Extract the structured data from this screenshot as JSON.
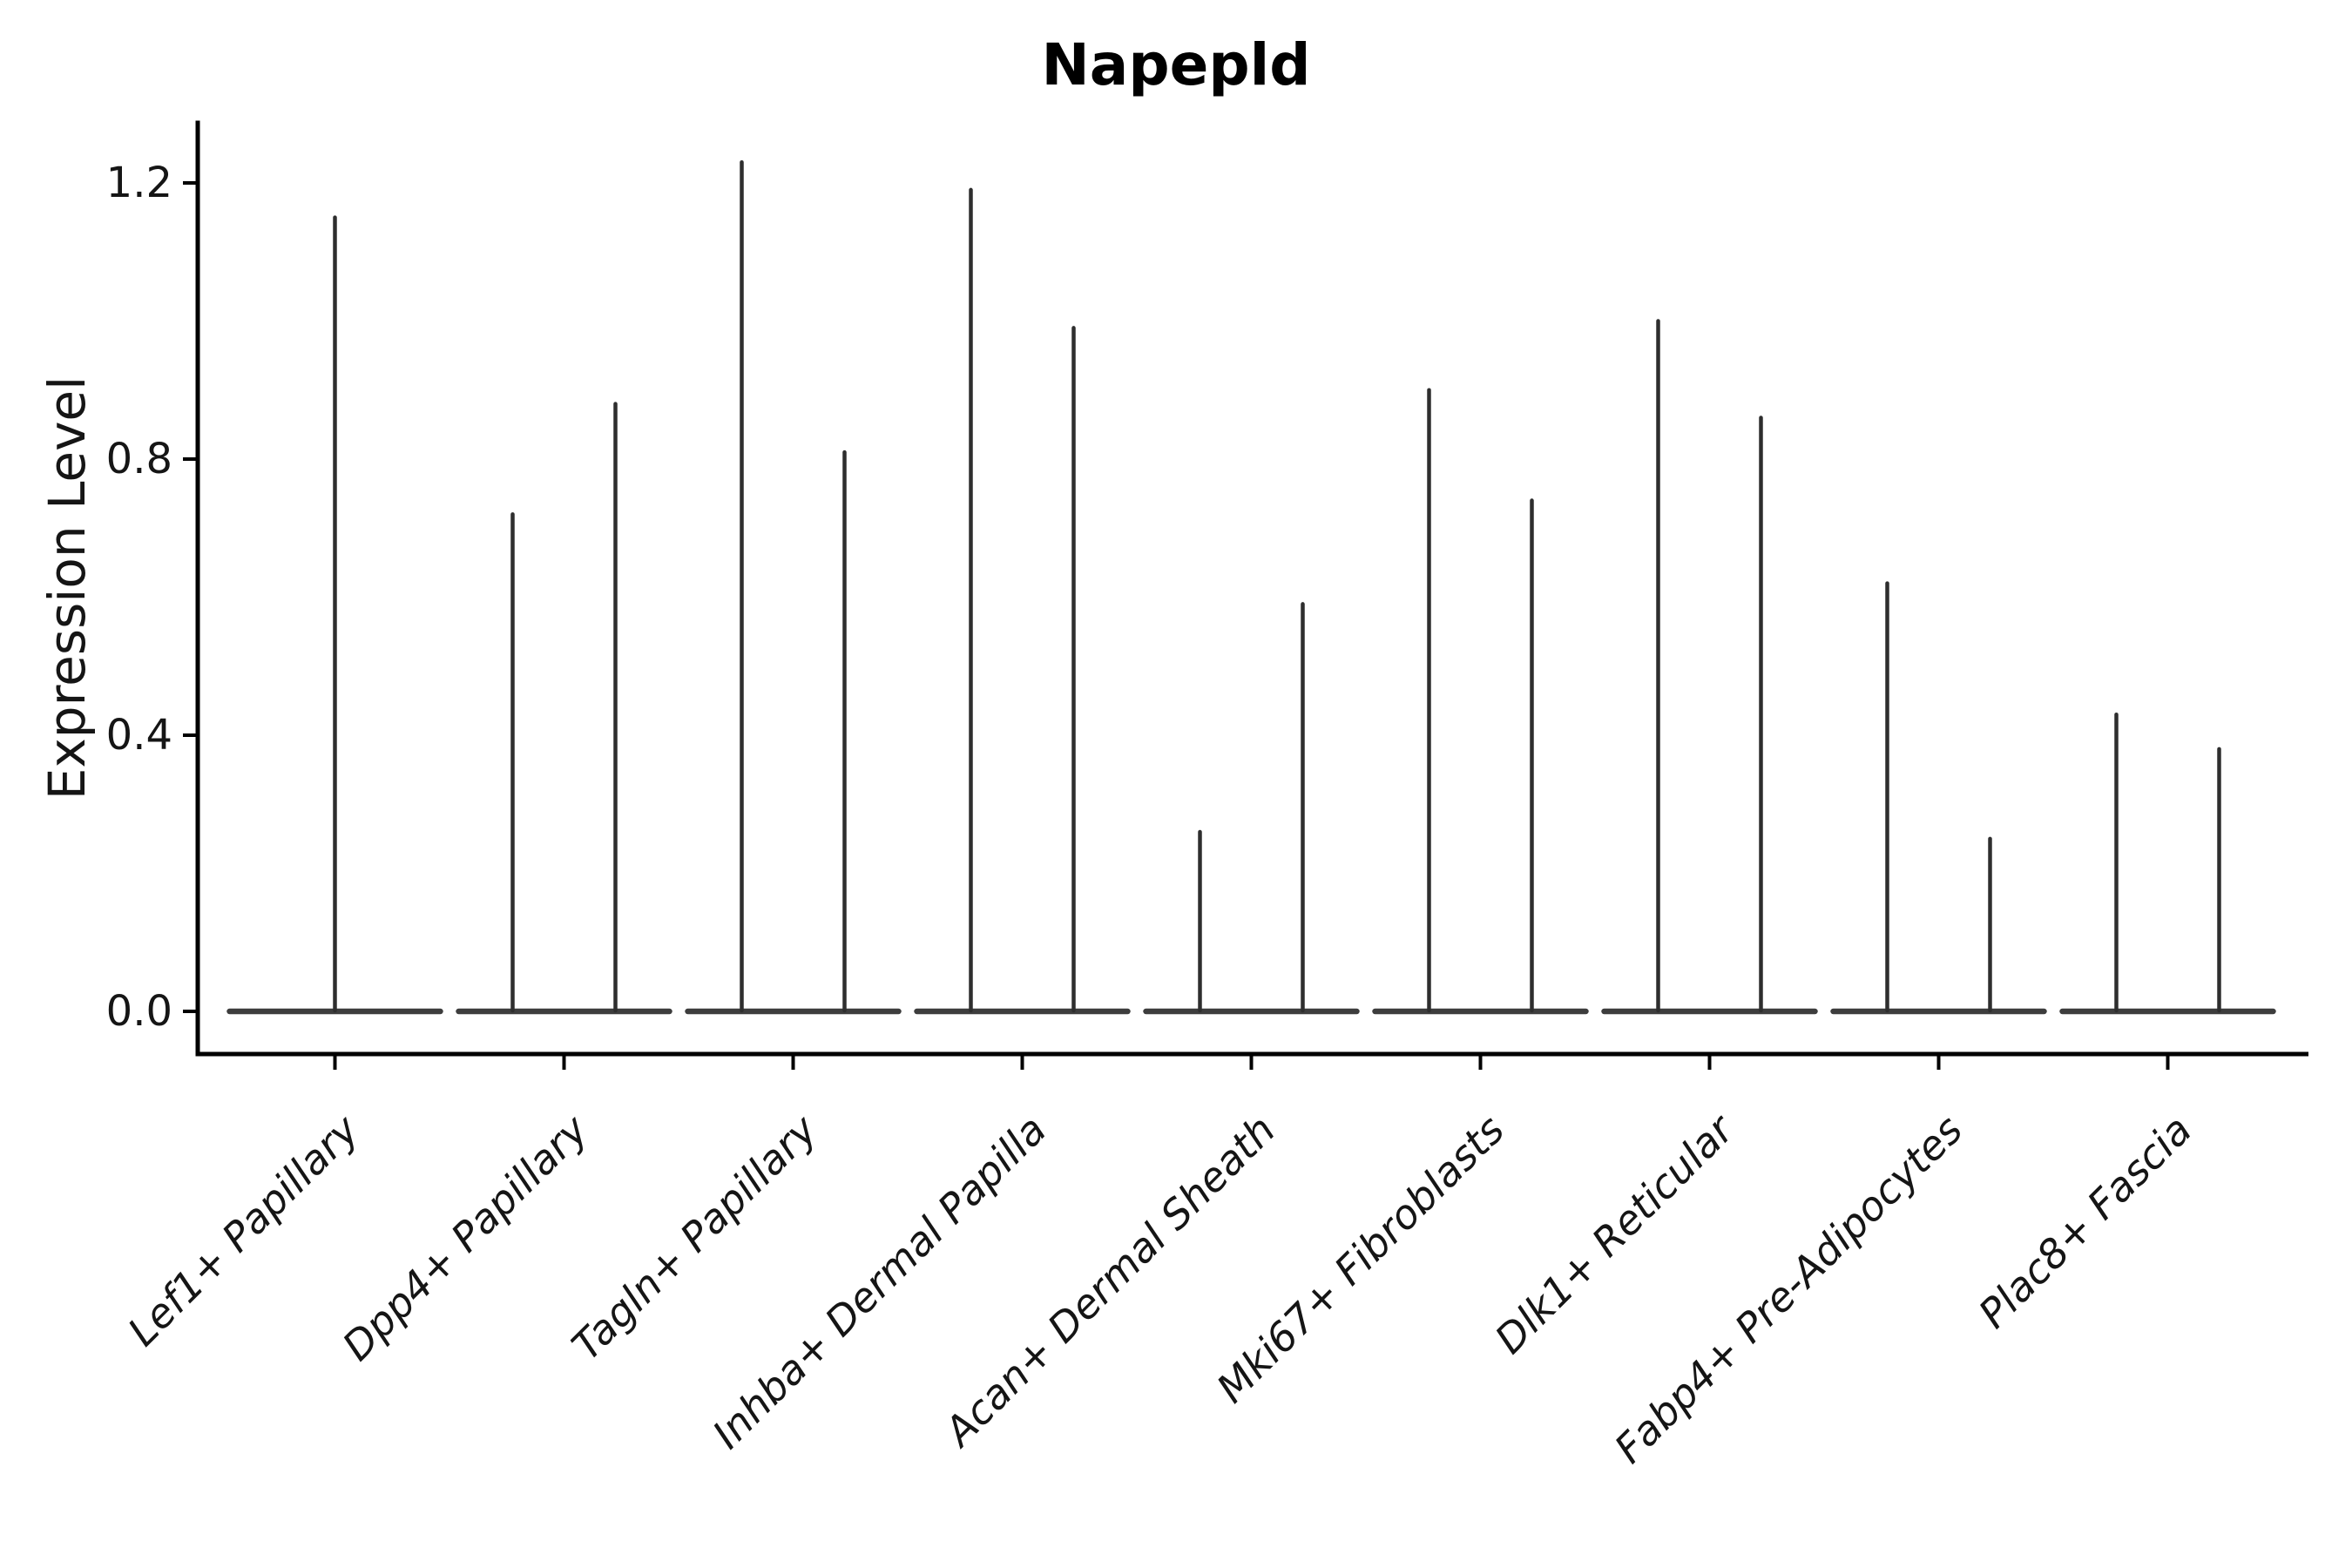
{
  "title": "Napepld",
  "ylabel": "Expression Level",
  "chart_data": {
    "type": "violin",
    "title": "Napepld",
    "xlabel": "",
    "ylabel": "Expression Level",
    "ytick_labels": [
      "0.0",
      "0.4",
      "0.8",
      "1.2"
    ],
    "ytick_values": [
      0.0,
      0.4,
      0.8,
      1.2
    ],
    "ylim": [
      -0.062,
      1.287
    ],
    "grid": false,
    "legend": "none",
    "baseline_value": 0.0,
    "description": "Needle-thin violin plot of gene expression; each category shows a flat violin base at 0 with thin density spikes rising to the maximum expression value.",
    "categories": [
      "Lef1+ Papillary",
      "Dpp4+ Papillary",
      "Tagln+ Papillary",
      "Inhba+ Dermal Papilla",
      "Acan+ Dermal Sheath",
      "Mki67+ Fibroblasts",
      "Dlk1+ Reticular",
      "Fabp4+ Pre-Adipocytes",
      "Plac8+ Fascia"
    ],
    "violins": [
      {
        "category": "Lef1+ Papillary",
        "spike_positions": [
          "center"
        ],
        "spike_maxima": [
          1.15
        ]
      },
      {
        "category": "Dpp4+ Papillary",
        "spike_positions": [
          "left",
          "right"
        ],
        "spike_maxima": [
          0.72,
          0.88
        ]
      },
      {
        "category": "Tagln+ Papillary",
        "spike_positions": [
          "left",
          "right"
        ],
        "spike_maxima": [
          1.23,
          0.81
        ]
      },
      {
        "category": "Inhba+ Dermal Papilla",
        "spike_positions": [
          "left",
          "right"
        ],
        "spike_maxima": [
          1.19,
          0.99
        ]
      },
      {
        "category": "Acan+ Dermal Sheath",
        "spike_positions": [
          "left",
          "right"
        ],
        "spike_maxima": [
          0.26,
          0.59
        ]
      },
      {
        "category": "Mki67+ Fibroblasts",
        "spike_positions": [
          "left",
          "right"
        ],
        "spike_maxima": [
          0.9,
          0.74
        ]
      },
      {
        "category": "Dlk1+ Reticular",
        "spike_positions": [
          "left",
          "right"
        ],
        "spike_maxima": [
          1.0,
          0.86
        ]
      },
      {
        "category": "Fabp4+ Pre-Adipocytes",
        "spike_positions": [
          "left",
          "right"
        ],
        "spike_maxima": [
          0.62,
          0.25
        ]
      },
      {
        "category": "Plac8+ Fascia",
        "spike_positions": [
          "left",
          "right"
        ],
        "spike_maxima": [
          0.43,
          0.38
        ]
      }
    ],
    "colors": {
      "violin_stroke": "#2e2e2e",
      "baseline_stroke": "#3d3d3d",
      "spine": "#000000",
      "tick": "#000000",
      "text": "#151515",
      "title": "#000000",
      "background": "#ffffff"
    }
  }
}
